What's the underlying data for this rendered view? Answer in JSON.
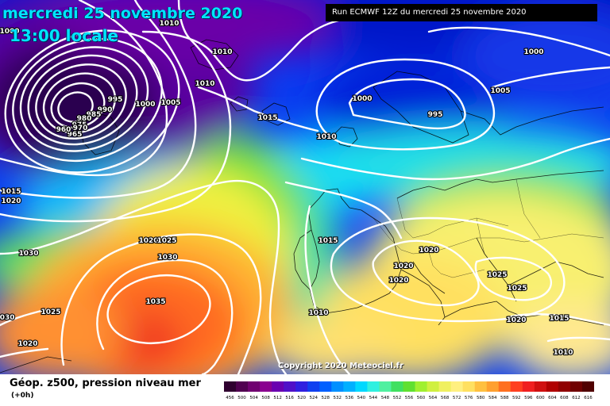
{
  "header": {
    "date": "mercredi 25 novembre 2020",
    "time": "13:00 locale",
    "run": "Run ECMWF 12Z du mercredi 25 novembre 2020"
  },
  "copyright": "Copyright 2020 Meteociel.fr",
  "legend": {
    "title": "Géop. z500, pression niveau mer",
    "subtitle": "(+0h)",
    "scale_labels": [
      "456",
      "500",
      "504",
      "508",
      "512",
      "516",
      "520",
      "524",
      "528",
      "532",
      "536",
      "540",
      "544",
      "548",
      "552",
      "556",
      "560",
      "564",
      "568",
      "572",
      "576",
      "580",
      "584",
      "588",
      "592",
      "596",
      "600",
      "604",
      "608",
      "612",
      "616"
    ],
    "scale_colors": [
      "#300030",
      "#500050",
      "#700070",
      "#8a0090",
      "#6a00b0",
      "#5010c8",
      "#3020e0",
      "#1040f0",
      "#0060ff",
      "#0090ff",
      "#00b0ff",
      "#00d8ff",
      "#30f0e0",
      "#50f0a0",
      "#40e060",
      "#60e030",
      "#a0f030",
      "#d0f040",
      "#f0f060",
      "#fff080",
      "#ffe060",
      "#ffc040",
      "#ffa030",
      "#ff7020",
      "#ff4020",
      "#f02020",
      "#d01010",
      "#b00000",
      "#900000",
      "#700000",
      "#500000"
    ]
  },
  "isobars": [
    {
      "label": "1010",
      "kind": "pressure"
    },
    {
      "label": "1010",
      "kind": "pressure"
    },
    {
      "label": "1010",
      "kind": "pressure"
    },
    {
      "label": "1005",
      "kind": "pressure"
    },
    {
      "label": "1000",
      "kind": "pressure"
    },
    {
      "label": "995",
      "kind": "pressure"
    },
    {
      "label": "990",
      "kind": "pressure"
    },
    {
      "label": "985",
      "kind": "pressure"
    },
    {
      "label": "980",
      "kind": "pressure"
    },
    {
      "label": "975",
      "kind": "pressure"
    },
    {
      "label": "970",
      "kind": "pressure"
    },
    {
      "label": "965",
      "kind": "pressure"
    },
    {
      "label": "960",
      "kind": "pressure"
    },
    {
      "label": "1015",
      "kind": "pressure"
    },
    {
      "label": "1000",
      "kind": "pressure"
    },
    {
      "label": "995",
      "kind": "pressure"
    },
    {
      "label": "1005",
      "kind": "pressure"
    },
    {
      "label": "1000",
      "kind": "pressure"
    },
    {
      "label": "1010",
      "kind": "pressure"
    },
    {
      "label": "1015",
      "kind": "pressure"
    },
    {
      "label": "1020",
      "kind": "pressure"
    },
    {
      "label": "1030",
      "kind": "pressure"
    },
    {
      "label": "1020",
      "kind": "pressure"
    },
    {
      "label": "1025",
      "kind": "pressure"
    },
    {
      "label": "1030",
      "kind": "pressure"
    },
    {
      "label": "1035",
      "kind": "pressure"
    },
    {
      "label": "1025",
      "kind": "pressure"
    },
    {
      "label": "1020",
      "kind": "pressure"
    },
    {
      "label": "1030",
      "kind": "pressure"
    },
    {
      "label": "1015",
      "kind": "pressure"
    },
    {
      "label": "1020",
      "kind": "pressure"
    },
    {
      "label": "1020",
      "kind": "pressure"
    },
    {
      "label": "1020",
      "kind": "pressure"
    },
    {
      "label": "1025",
      "kind": "pressure"
    },
    {
      "label": "1025",
      "kind": "pressure"
    },
    {
      "label": "1020",
      "kind": "pressure"
    },
    {
      "label": "1015",
      "kind": "pressure"
    },
    {
      "label": "1010",
      "kind": "pressure"
    },
    {
      "label": "1010",
      "kind": "pressure"
    },
    {
      "label": "1000",
      "kind": "pressure"
    }
  ]
}
